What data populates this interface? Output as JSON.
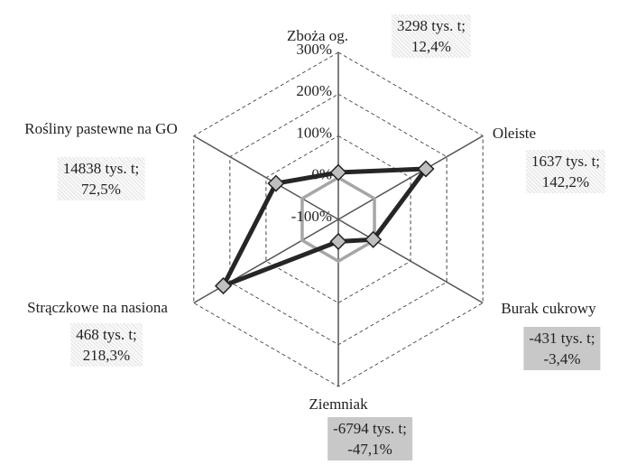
{
  "chart_data": {
    "type": "radar",
    "categories": [
      "Zboża og.",
      "Oleiste",
      "Burak cukrowy",
      "Ziemniak",
      "Strączkowe na nasiona",
      "Rośliny pastewne na GO"
    ],
    "annotations": [
      "3298 tys. t;",
      "1637 tys. t;",
      "-431 tys. t;",
      "-6794 tys. t;",
      "468 tys. t;",
      "14838 tys. t;"
    ],
    "series": [
      {
        "color": "#a6a6a6",
        "values": [
          0,
          0,
          0,
          0,
          0,
          0
        ]
      },
      {
        "color": "#262626",
        "values": [
          12.4,
          142.2,
          -3.4,
          -47.1,
          218.3,
          72.5
        ],
        "value_labels": [
          "12,4%",
          "142,2%",
          "-3,4%",
          "-47,1%",
          "218,3%",
          "72,5%"
        ]
      }
    ],
    "ylim": [
      -100,
      300
    ],
    "yticks": [
      {
        "value": -100,
        "label": "-100%"
      },
      {
        "value": 0,
        "label": "0%"
      },
      {
        "value": 100,
        "label": "100%"
      },
      {
        "value": 200,
        "label": "200%"
      },
      {
        "value": 300,
        "label": "300%"
      }
    ],
    "grid": true
  }
}
